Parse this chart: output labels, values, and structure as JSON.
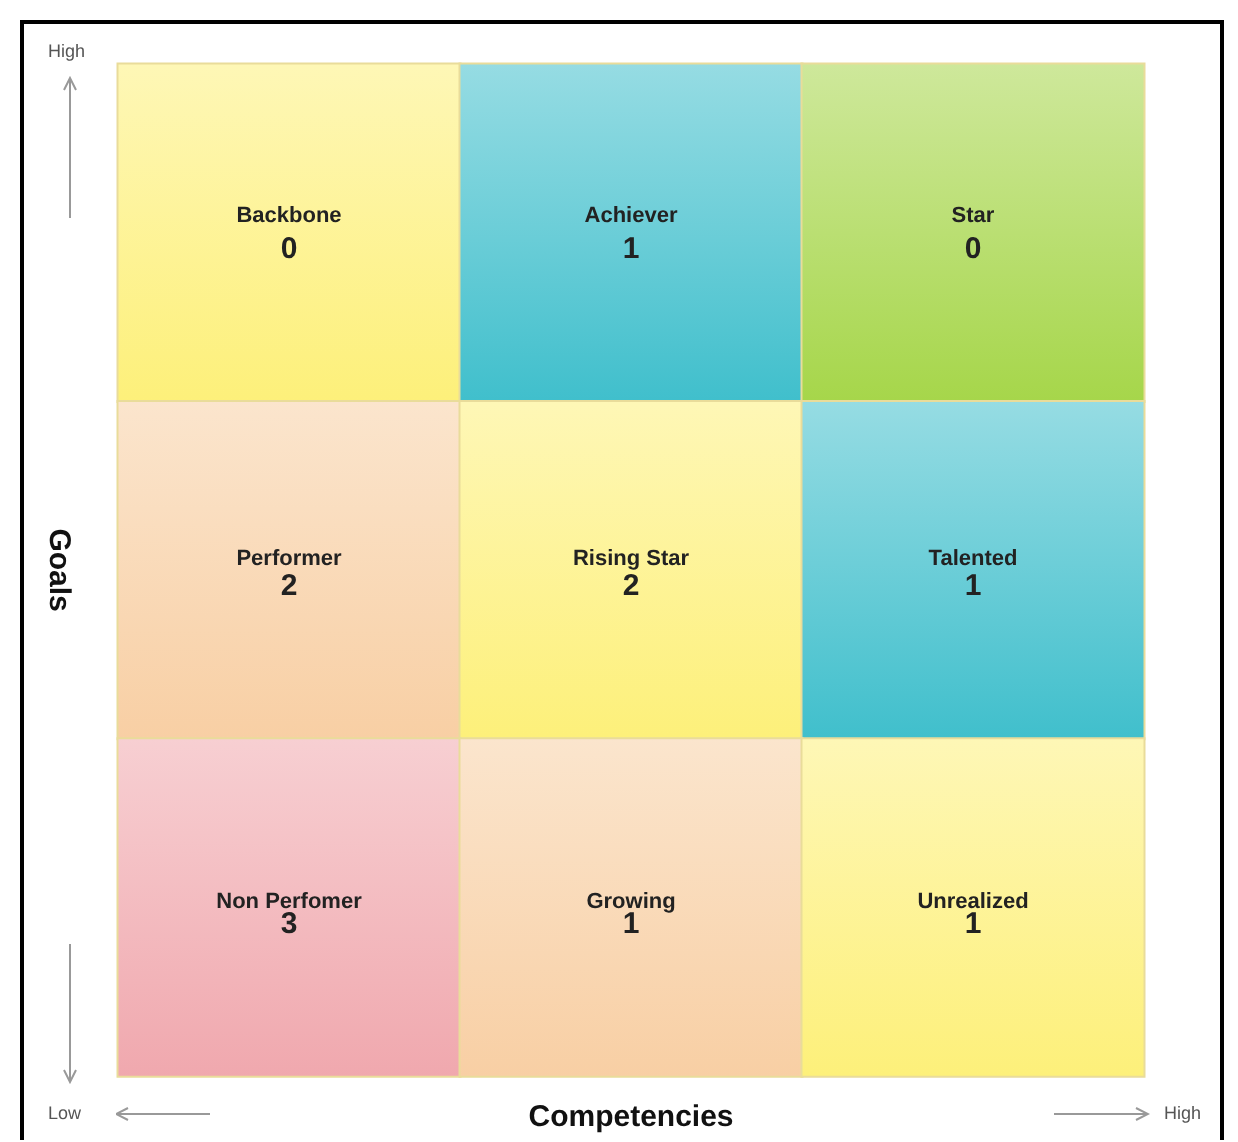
{
  "chart_data": {
    "type": "heatmap",
    "xlabel": "Competencies",
    "ylabel": "Goals",
    "categories": [
      null,
      null,
      null
    ],
    "y_categories": [
      null,
      null,
      null
    ],
    "cells": [
      [
        0,
        1,
        0
      ],
      [
        2,
        2,
        1
      ],
      [
        3,
        1,
        1
      ]
    ],
    "colors": [
      [
        "#fdf07a",
        "#40bfcc",
        "#a6d64a"
      ],
      [
        "#f8cfa4",
        "#fdf07a",
        "#40bfcc"
      ],
      [
        "#f0a8ae",
        "#f8cfa4",
        "#fdf07a"
      ]
    ],
    "annotations": [
      "High",
      "Low",
      "High",
      "Backbone",
      "Achiever",
      "Star",
      "Performer",
      "Rising Star",
      "Talented",
      "Non Perfomer",
      "Growing",
      "Unrealized"
    ],
    "data_labels": true
  }
}
